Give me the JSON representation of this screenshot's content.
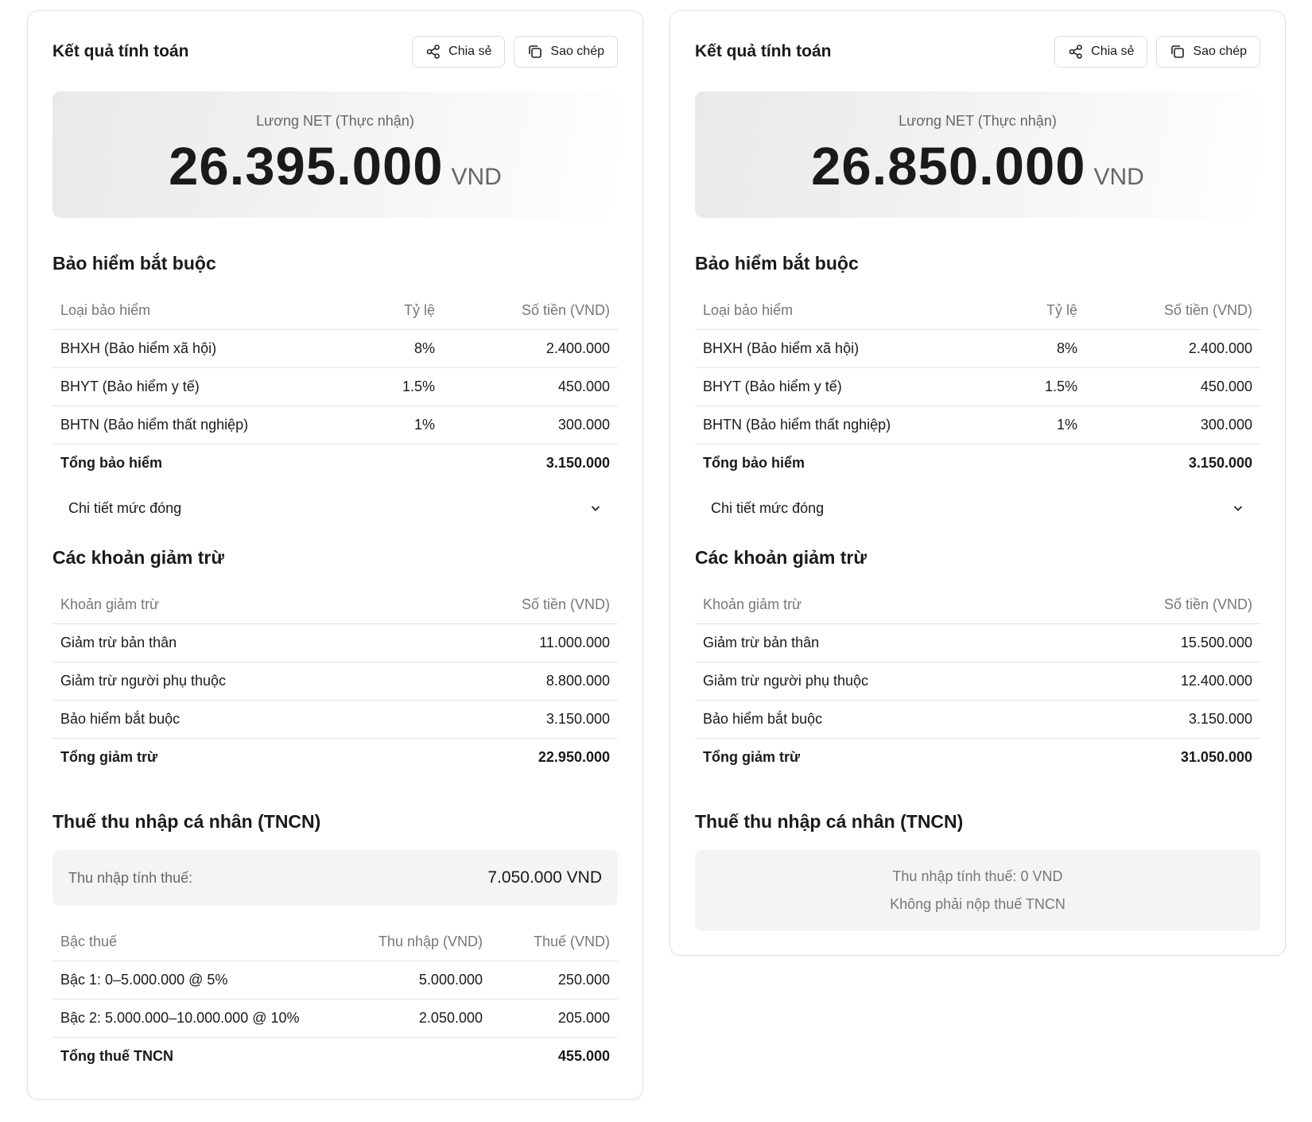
{
  "panels": [
    {
      "title": "Kết quả tính toán",
      "buttons": [
        "Chia sẻ",
        "Sao chép"
      ],
      "net": {
        "label": "Lương NET (Thực nhận)",
        "amount": "26.395.000",
        "unit": "VND"
      },
      "insurance": {
        "heading": "Bảo hiểm bắt buộc",
        "columns": [
          "Loại bảo hiểm",
          "Tỷ lệ",
          "Số tiền (VND)"
        ],
        "rows": [
          [
            "BHXH (Bảo hiểm xã hội)",
            "8%",
            "2.400.000"
          ],
          [
            "BHYT (Bảo hiểm y tế)",
            "1.5%",
            "450.000"
          ],
          [
            "BHTN (Bảo hiểm thất nghiệp)",
            "1%",
            "300.000"
          ]
        ],
        "total": [
          "Tổng bảo hiểm",
          "3.150.000"
        ],
        "details": "Chi tiết mức đóng"
      },
      "deductions": {
        "heading": "Các khoản giảm trừ",
        "columns": [
          "Khoản giảm trừ",
          "Số tiền (VND)"
        ],
        "rows": [
          [
            "Giảm trừ bản thân",
            "11.000.000"
          ],
          [
            "Giảm trừ người phụ thuộc",
            "8.800.000"
          ],
          [
            "Bảo hiểm bắt buộc",
            "3.150.000"
          ]
        ],
        "total": [
          "Tổng giảm trừ",
          "22.950.000"
        ]
      },
      "tax": {
        "heading": "Thuế thu nhập cá nhân (TNCN)",
        "taxable": {
          "label": "Thu nhập tính thuế:",
          "value": "7.050.000 VND"
        },
        "brackets": {
          "columns": [
            "Bậc thuế",
            "Thu nhập (VND)",
            "Thuế (VND)"
          ],
          "rows": [
            [
              "Bậc 1: 0–5.000.000 @ 5%",
              "5.000.000",
              "250.000"
            ],
            [
              "Bậc 2: 5.000.000–10.000.000 @ 10%",
              "2.050.000",
              "205.000"
            ]
          ],
          "total": [
            "Tổng thuế TNCN",
            "455.000"
          ]
        }
      }
    },
    {
      "title": "Kết quả tính toán",
      "buttons": [
        "Chia sẻ",
        "Sao chép"
      ],
      "net": {
        "label": "Lương NET (Thực nhận)",
        "amount": "26.850.000",
        "unit": "VND"
      },
      "insurance": {
        "heading": "Bảo hiểm bắt buộc",
        "columns": [
          "Loại bảo hiểm",
          "Tỷ lệ",
          "Số tiền (VND)"
        ],
        "rows": [
          [
            "BHXH (Bảo hiểm xã hội)",
            "8%",
            "2.400.000"
          ],
          [
            "BHYT (Bảo hiểm y tế)",
            "1.5%",
            "450.000"
          ],
          [
            "BHTN (Bảo hiểm thất nghiệp)",
            "1%",
            "300.000"
          ]
        ],
        "total": [
          "Tổng bảo hiểm",
          "3.150.000"
        ],
        "details": "Chi tiết mức đóng"
      },
      "deductions": {
        "heading": "Các khoản giảm trừ",
        "columns": [
          "Khoản giảm trừ",
          "Số tiền (VND)"
        ],
        "rows": [
          [
            "Giảm trừ bản thân",
            "15.500.000"
          ],
          [
            "Giảm trừ người phụ thuộc",
            "12.400.000"
          ],
          [
            "Bảo hiểm bắt buộc",
            "3.150.000"
          ]
        ],
        "total": [
          "Tổng giảm trừ",
          "31.050.000"
        ]
      },
      "tax": {
        "heading": "Thuế thu nhập cá nhân (TNCN)",
        "note": [
          "Thu nhập tính thuế: 0 VND",
          "Không phải nộp thuế TNCN"
        ]
      }
    }
  ]
}
